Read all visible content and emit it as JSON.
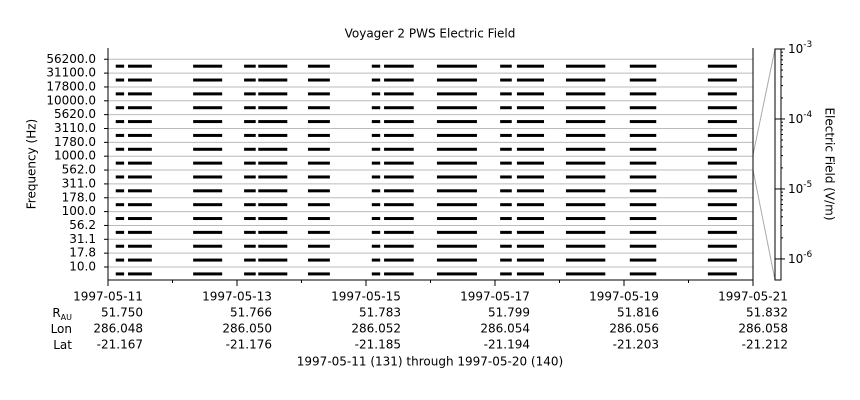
{
  "chart_data": {
    "type": "spectrogram",
    "title": "Voyager 2 PWS Electric Field",
    "y_label": "Frequency (Hz)",
    "yticks": [
      {
        "value": 10,
        "label": "10.0"
      },
      {
        "value": 17.8,
        "label": "17.8"
      },
      {
        "value": 31.1,
        "label": "31.1"
      },
      {
        "value": 56.2,
        "label": "56.2"
      },
      {
        "value": 100,
        "label": "100.0"
      },
      {
        "value": 178,
        "label": "178.0"
      },
      {
        "value": 311,
        "label": "311.0"
      },
      {
        "value": 562,
        "label": "562.0"
      },
      {
        "value": 1000,
        "label": "1000.0"
      },
      {
        "value": 1780,
        "label": "1780.0"
      },
      {
        "value": 3110,
        "label": "3110.0"
      },
      {
        "value": 5620,
        "label": "5620.0"
      },
      {
        "value": 10000,
        "label": "10000.0"
      },
      {
        "value": 17800,
        "label": "17800.0"
      },
      {
        "value": 31100,
        "label": "31100.0"
      },
      {
        "value": 56200,
        "label": "56200.0"
      }
    ],
    "xlim": [
      0,
      10
    ],
    "xticks": [
      {
        "value": 0,
        "label": "1997-05-11"
      },
      {
        "value": 2,
        "label": "1997-05-13"
      },
      {
        "value": 4,
        "label": "1997-05-15"
      },
      {
        "value": 6,
        "label": "1997-05-17"
      },
      {
        "value": 8,
        "label": "1997-05-19"
      },
      {
        "value": 10,
        "label": "1997-05-21"
      }
    ],
    "segments": [
      {
        "start": 0.12,
        "end": 0.25
      },
      {
        "start": 0.31,
        "end": 0.68
      },
      {
        "start": 1.32,
        "end": 1.77
      },
      {
        "start": 2.11,
        "end": 2.29
      },
      {
        "start": 2.33,
        "end": 2.78
      },
      {
        "start": 3.1,
        "end": 3.44
      },
      {
        "start": 4.09,
        "end": 4.22
      },
      {
        "start": 4.28,
        "end": 4.74
      },
      {
        "start": 5.1,
        "end": 5.72
      },
      {
        "start": 6.08,
        "end": 6.26
      },
      {
        "start": 6.34,
        "end": 6.76
      },
      {
        "start": 7.1,
        "end": 7.71
      },
      {
        "start": 8.09,
        "end": 8.5
      },
      {
        "start": 9.3,
        "end": 9.75
      }
    ],
    "color": "#000000",
    "colorbar": {
      "label": "Electric Field (V/m)",
      "log": true,
      "lim": [
        5e-07,
        0.001
      ],
      "ticks": [
        {
          "value": 1e-06,
          "label": "10",
          "exponent": "-6"
        },
        {
          "value": 1e-05,
          "label": "10",
          "exponent": "-5"
        },
        {
          "value": 0.0001,
          "label": "10",
          "exponent": "-4"
        },
        {
          "value": 0.001,
          "label": "10",
          "exponent": "-3"
        }
      ]
    },
    "ephemeris": [
      {
        "label": "R",
        "subscript": "AU",
        "values": [
          "51.750",
          "51.766",
          "51.783",
          "51.799",
          "51.816",
          "51.832"
        ]
      },
      {
        "label": "Lon",
        "values": [
          "286.048",
          "286.050",
          "286.052",
          "286.054",
          "286.056",
          "286.058"
        ]
      },
      {
        "label": "Lat",
        "values": [
          "-21.167",
          "-21.176",
          "-21.185",
          "-21.194",
          "-21.203",
          "-21.212"
        ]
      }
    ],
    "footer": "1997-05-11 (131) through 1997-05-20 (140)"
  }
}
